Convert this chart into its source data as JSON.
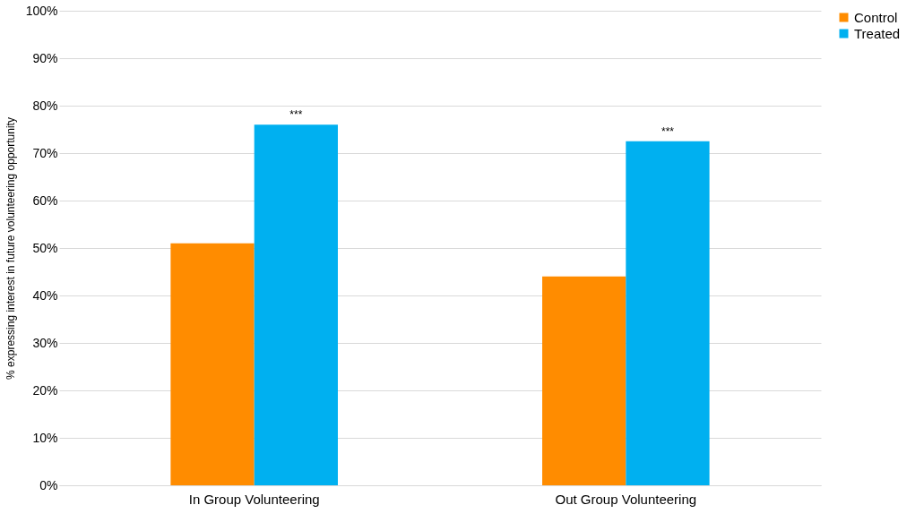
{
  "chart_data": {
    "type": "bar",
    "categories": [
      "In Group Volunteering",
      "Out Group Volunteering"
    ],
    "series": [
      {
        "name": "Control",
        "color": "#ff8c00",
        "values": [
          51,
          44
        ]
      },
      {
        "name": "Treated",
        "color": "#00b0f0",
        "values": [
          76,
          72.5
        ]
      }
    ],
    "ylabel": "% expressing interest in future volunteering opportunity",
    "ylim": [
      0,
      100
    ],
    "yticks": [
      {
        "value": 0,
        "label": "0%"
      },
      {
        "value": 10,
        "label": "10%"
      },
      {
        "value": 20,
        "label": "20%"
      },
      {
        "value": 30,
        "label": "30%"
      },
      {
        "value": 40,
        "label": "40%"
      },
      {
        "value": 50,
        "label": "50%"
      },
      {
        "value": 60,
        "label": "60%"
      },
      {
        "value": 70,
        "label": "70%"
      },
      {
        "value": 80,
        "label": "80%"
      },
      {
        "value": 90,
        "label": "90%"
      },
      {
        "value": 100,
        "label": "100%"
      }
    ],
    "grid": "y",
    "legend": "right",
    "annotations": [
      "***",
      "***"
    ]
  }
}
